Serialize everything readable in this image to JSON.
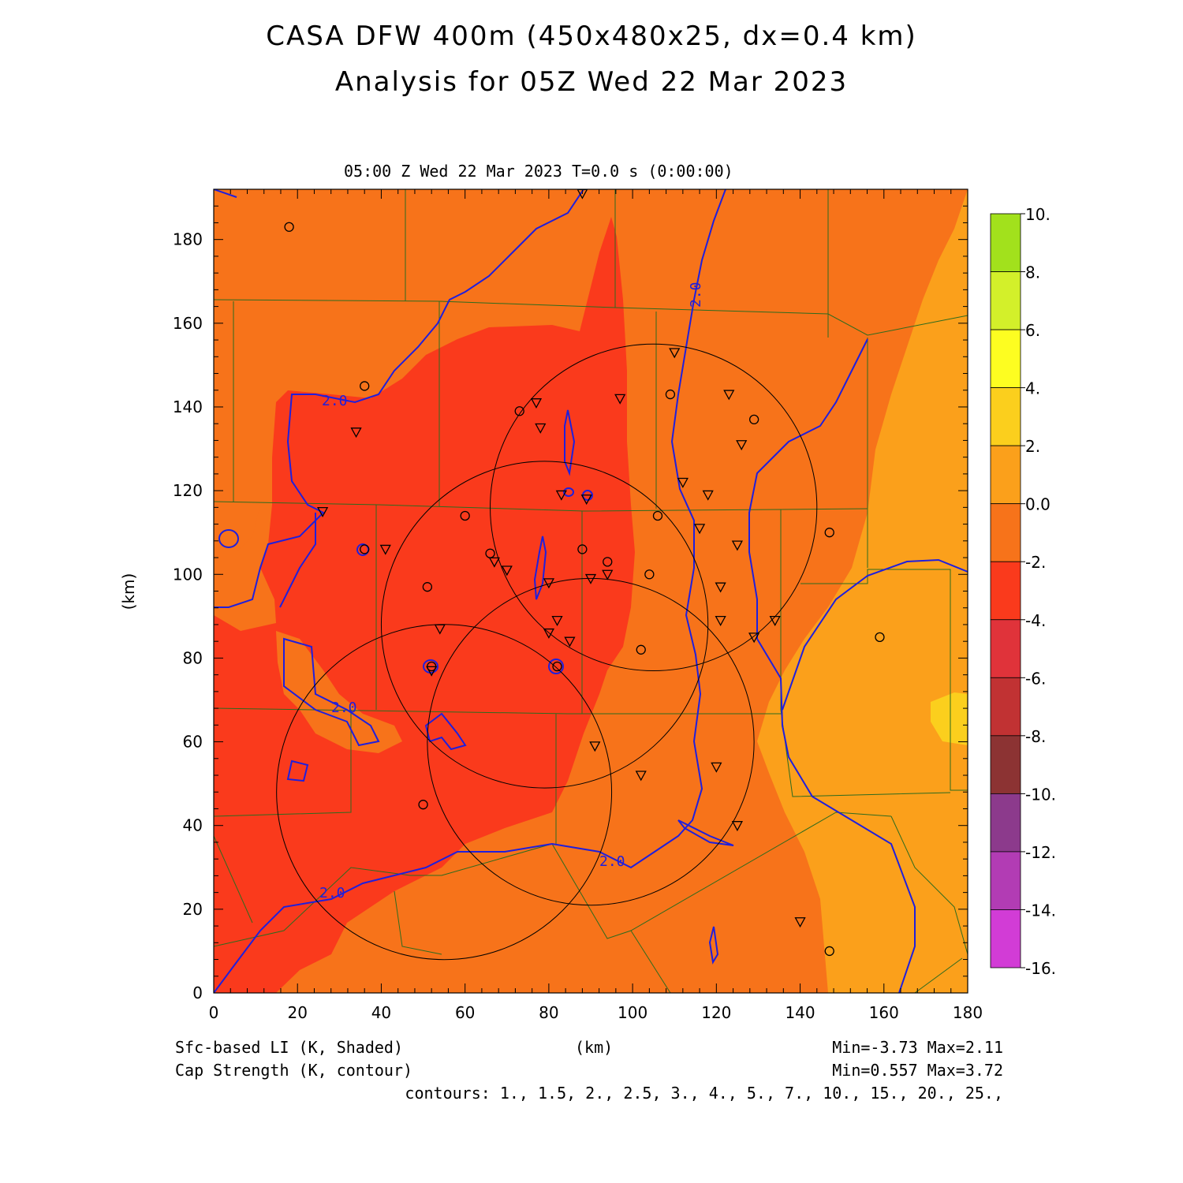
{
  "title": {
    "line1": "CASA DFW 400m (450x480x25, dx=0.4 km)",
    "line2": "Analysis for 05Z Wed 22 Mar 2023"
  },
  "subtitle": "05:00 Z Wed 22 Mar 2023    T=0.0 s (0:00:00)",
  "footer": {
    "field1": "Sfc-based LI (K, Shaded)",
    "field2": "Cap Strength (K, contour)",
    "xunit": "(km)",
    "range1": "Min=-3.73 Max=2.11",
    "range2": "Min=0.557 Max=3.72",
    "contours": "contours: 1., 1.5, 2., 2.5, 3., 4., 5., 7., 10., 15., 20., 25.,"
  },
  "chart_data": {
    "type": "heatmap",
    "xlabel": "(km)",
    "ylabel": "(km)",
    "xlim": [
      0,
      180
    ],
    "ylim": [
      0,
      192
    ],
    "x_ticks": [
      "0",
      "20",
      "40",
      "60",
      "80",
      "100",
      "120",
      "140",
      "160",
      "180"
    ],
    "y_ticks": [
      "0",
      "20",
      "40",
      "60",
      "80",
      "100",
      "120",
      "140",
      "160",
      "180"
    ],
    "contour_label": "2.0",
    "colorbar": {
      "labels": [
        "10.",
        "8.",
        "6.",
        "4.",
        "2.",
        "0.0",
        "-2.",
        "-4.",
        "-6.",
        "-8.",
        "-10.",
        "-12.",
        "-14.",
        "-16."
      ],
      "colors": [
        "#a2e11c",
        "#d3f02a",
        "#fdfd21",
        "#fbcf1d",
        "#fba01b",
        "#f7731a",
        "#fa3a1c",
        "#e0333a",
        "#c13233",
        "#8c3333",
        "#8c3a8c",
        "#b23cb4",
        "#d23cd6"
      ]
    },
    "radar_ranges_km": [
      {
        "cx": 105,
        "cy": 116,
        "r": 39
      },
      {
        "cx": 79,
        "cy": 88,
        "r": 39
      },
      {
        "cx": 90,
        "cy": 60,
        "r": 39
      },
      {
        "cx": 55,
        "cy": 48,
        "r": 40
      }
    ],
    "stations_circle": [
      [
        18,
        183
      ],
      [
        36,
        145
      ],
      [
        36,
        106
      ],
      [
        60,
        114
      ],
      [
        66,
        105
      ],
      [
        51,
        97
      ],
      [
        73,
        139
      ],
      [
        88,
        106
      ],
      [
        94,
        103
      ],
      [
        104,
        100
      ],
      [
        106,
        114
      ],
      [
        109,
        143
      ],
      [
        129,
        137
      ],
      [
        147,
        110
      ],
      [
        159,
        85
      ],
      [
        102,
        82
      ],
      [
        82,
        78
      ],
      [
        52,
        78
      ],
      [
        50,
        45
      ],
      [
        147,
        10
      ]
    ],
    "stations_triangle": [
      [
        88,
        191
      ],
      [
        34,
        134
      ],
      [
        26,
        115
      ],
      [
        41,
        106
      ],
      [
        77,
        141
      ],
      [
        78,
        135
      ],
      [
        83,
        119
      ],
      [
        89,
        118
      ],
      [
        97,
        142
      ],
      [
        110,
        153
      ],
      [
        112,
        122
      ],
      [
        116,
        111
      ],
      [
        118,
        119
      ],
      [
        123,
        143
      ],
      [
        126,
        131
      ],
      [
        125,
        107
      ],
      [
        121,
        97
      ],
      [
        121,
        89
      ],
      [
        129,
        85
      ],
      [
        134,
        89
      ],
      [
        67,
        103
      ],
      [
        70,
        101
      ],
      [
        80,
        98
      ],
      [
        90,
        99
      ],
      [
        94,
        100
      ],
      [
        80,
        86
      ],
      [
        82,
        89
      ],
      [
        85,
        84
      ],
      [
        54,
        87
      ],
      [
        52,
        77
      ],
      [
        91,
        59
      ],
      [
        102,
        52
      ],
      [
        120,
        54
      ],
      [
        125,
        40
      ],
      [
        140,
        17
      ]
    ]
  }
}
